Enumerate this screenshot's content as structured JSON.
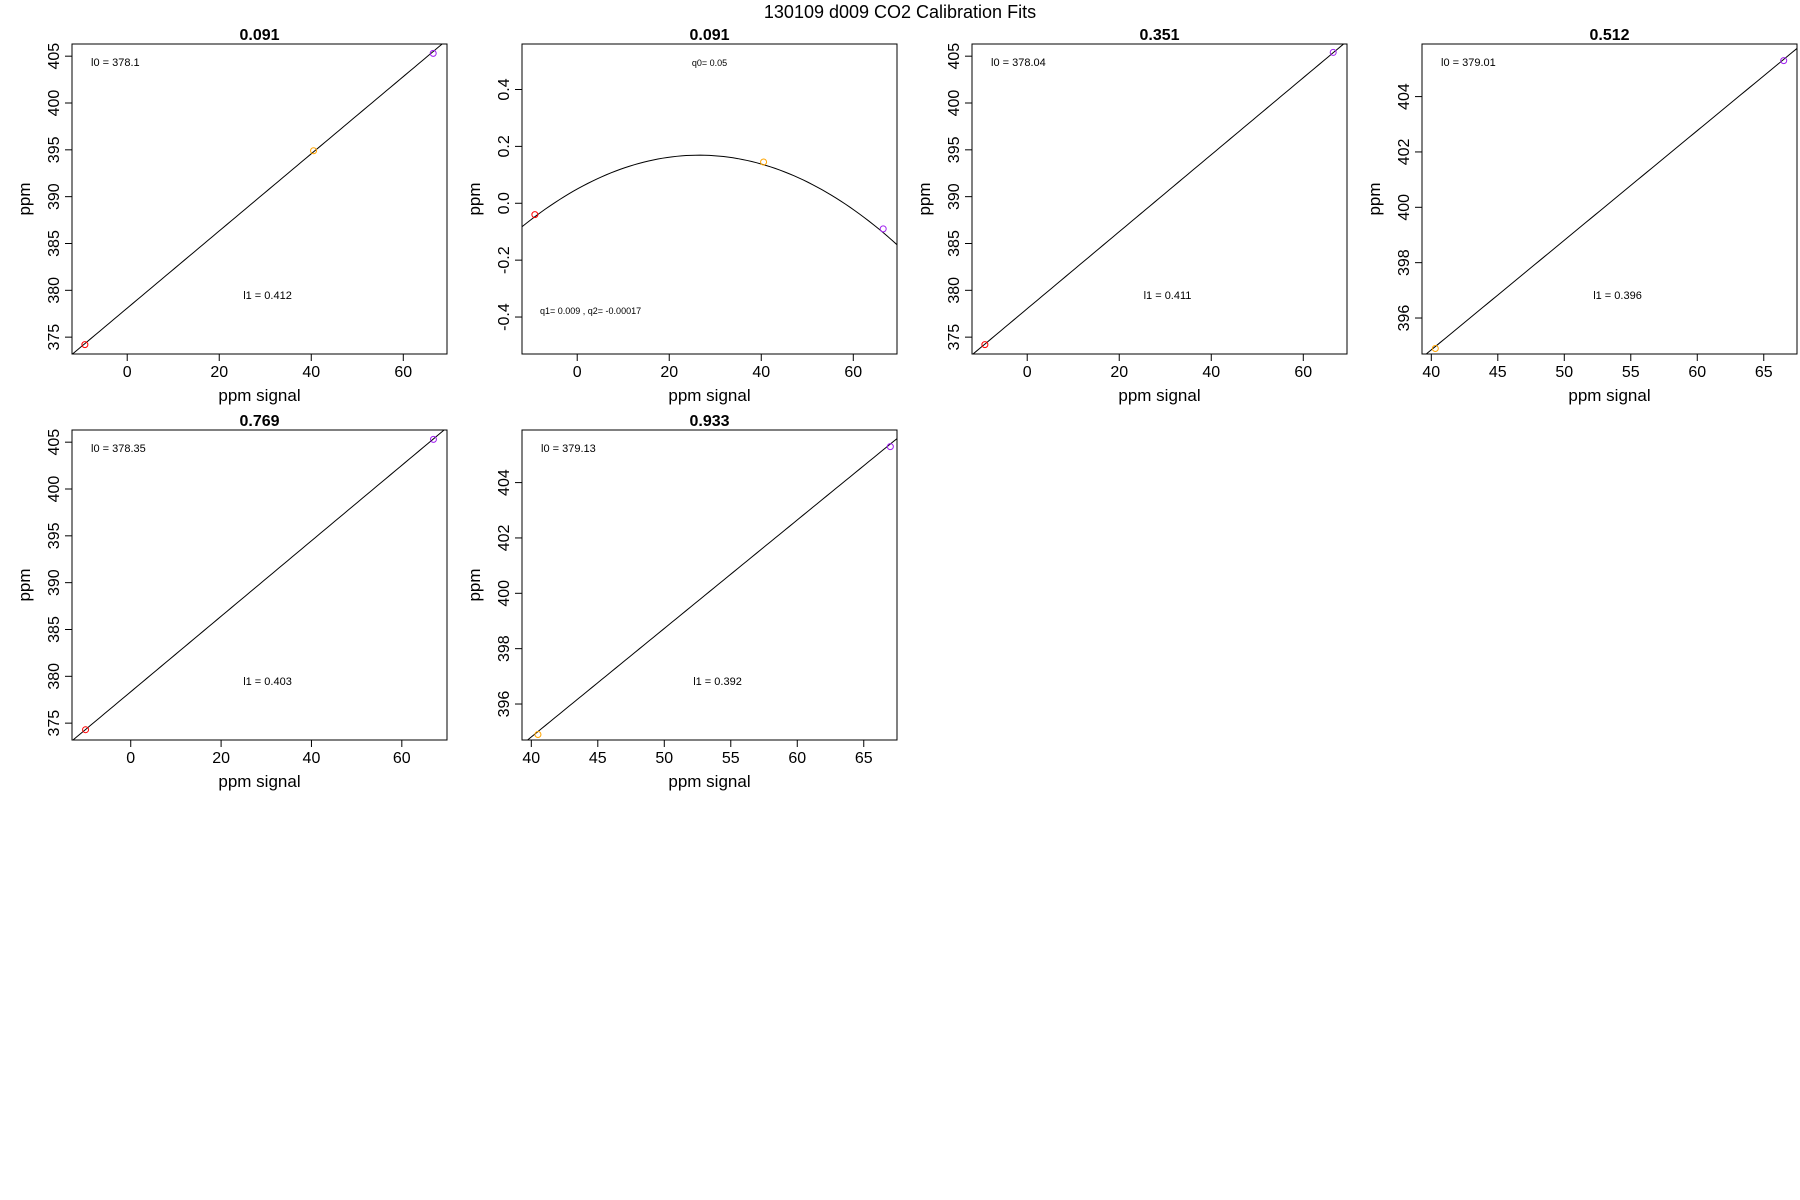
{
  "figure": {
    "title": "130109   d009   CO2 Calibration Fits",
    "colors": {
      "red": "#ff0000",
      "orange": "#ffa500",
      "purple": "#a020f0",
      "axis": "#000000"
    }
  },
  "chart_data": [
    {
      "type": "scatter",
      "title": "0.091",
      "xlabel": "ppm signal",
      "ylabel": "ppm",
      "xlim": [
        -12,
        69.5
      ],
      "ylim": [
        373.2,
        406.3
      ],
      "xticks": [
        0,
        20,
        40,
        60
      ],
      "yticks": [
        375,
        380,
        385,
        390,
        395,
        400,
        405
      ],
      "points": [
        {
          "x": -9.2,
          "y": 374.2,
          "color": "#ff0000"
        },
        {
          "x": 40.5,
          "y": 394.9,
          "color": "#ffa500"
        },
        {
          "x": 66.5,
          "y": 405.3,
          "color": "#a020f0"
        }
      ],
      "fit": {
        "kind": "linear",
        "intercept": 378.1,
        "slope": 0.412
      },
      "annotations": {
        "top": "l0 =  378.1",
        "bottom": "l1 =  0.412"
      }
    },
    {
      "type": "scatter",
      "title": "0.091",
      "xlabel": "ppm signal",
      "ylabel": "ppm",
      "xlim": [
        -12,
        69.5
      ],
      "ylim": [
        -0.53,
        0.56
      ],
      "xticks": [
        0,
        20,
        40,
        60
      ],
      "yticks": [
        -0.4,
        -0.2,
        0.0,
        0.2,
        0.4
      ],
      "ytick_labels": [
        "-0.4",
        "-0.2",
        "0.0",
        "0.2",
        "0.4"
      ],
      "points": [
        {
          "x": -9.2,
          "y": -0.04,
          "color": "#ff0000"
        },
        {
          "x": 40.5,
          "y": 0.145,
          "color": "#ffa500"
        },
        {
          "x": 66.5,
          "y": -0.09,
          "color": "#a020f0"
        }
      ],
      "fit": {
        "kind": "quadratic",
        "q0": 0.05,
        "q1": 0.009,
        "q2": -0.00017
      },
      "annotations": {
        "top": "q0= 0.05",
        "bottom": "q1= 0.009 , q2= -0.00017"
      }
    },
    {
      "type": "scatter",
      "title": "0.351",
      "xlabel": "ppm signal",
      "ylabel": "ppm",
      "xlim": [
        -12,
        69.5
      ],
      "ylim": [
        373.2,
        406.3
      ],
      "xticks": [
        0,
        20,
        40,
        60
      ],
      "yticks": [
        375,
        380,
        385,
        390,
        395,
        400,
        405
      ],
      "points": [
        {
          "x": -9.2,
          "y": 374.2,
          "color": "#ff0000"
        },
        {
          "x": 66.5,
          "y": 405.4,
          "color": "#a020f0"
        }
      ],
      "fit": {
        "kind": "linear",
        "intercept": 378.04,
        "slope": 0.411
      },
      "annotations": {
        "top": "l0 =  378.04",
        "bottom": "l1 =  0.411"
      }
    },
    {
      "type": "scatter",
      "title": "0.512",
      "xlabel": "ppm signal",
      "ylabel": "ppm",
      "xlim": [
        39.3,
        67.5
      ],
      "ylim": [
        394.7,
        405.9
      ],
      "xticks": [
        40,
        45,
        50,
        55,
        60,
        65
      ],
      "yticks": [
        396,
        398,
        400,
        402,
        404
      ],
      "points": [
        {
          "x": 40.3,
          "y": 394.9,
          "color": "#ffa500"
        },
        {
          "x": 66.5,
          "y": 405.3,
          "color": "#a020f0"
        }
      ],
      "fit": {
        "kind": "linear",
        "intercept": 379.01,
        "slope": 0.396
      },
      "annotations": {
        "top": "l0 =  379.01",
        "bottom": "l1 =  0.396"
      }
    },
    {
      "type": "scatter",
      "title": "0.769",
      "xlabel": "ppm signal",
      "ylabel": "ppm",
      "xlim": [
        -13,
        70
      ],
      "ylim": [
        373.2,
        406.3
      ],
      "xticks": [
        0,
        20,
        40,
        60
      ],
      "yticks": [
        375,
        380,
        385,
        390,
        395,
        400,
        405
      ],
      "points": [
        {
          "x": -10,
          "y": 374.3,
          "color": "#ff0000"
        },
        {
          "x": 67,
          "y": 405.3,
          "color": "#a020f0"
        }
      ],
      "fit": {
        "kind": "linear",
        "intercept": 378.35,
        "slope": 0.403
      },
      "annotations": {
        "top": "l0 =  378.35",
        "bottom": "l1 =  0.403"
      }
    },
    {
      "type": "scatter",
      "title": "0.933",
      "xlabel": "ppm signal",
      "ylabel": "ppm",
      "xlim": [
        39.3,
        67.5
      ],
      "ylim": [
        394.7,
        405.9
      ],
      "xticks": [
        40,
        45,
        50,
        55,
        60,
        65
      ],
      "yticks": [
        396,
        398,
        400,
        402,
        404
      ],
      "points": [
        {
          "x": 40.5,
          "y": 394.9,
          "color": "#ffa500"
        },
        {
          "x": 67,
          "y": 405.3,
          "color": "#a020f0"
        }
      ],
      "fit": {
        "kind": "linear",
        "intercept": 379.13,
        "slope": 0.392
      },
      "annotations": {
        "top": "l0 =  379.13",
        "bottom": "l1 =  0.392"
      }
    }
  ]
}
